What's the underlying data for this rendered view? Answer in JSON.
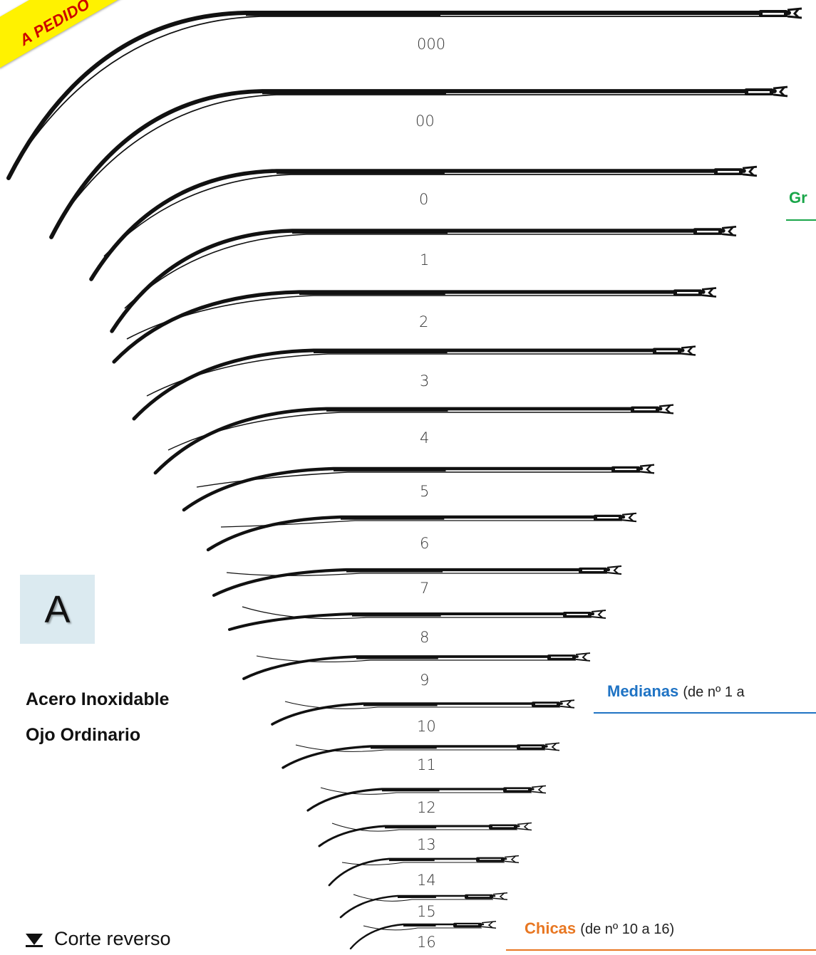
{
  "banner": {
    "text": "A PEDIDO"
  },
  "needle_sizes": [
    "000",
    "00",
    "0",
    "1",
    "2",
    "3",
    "4",
    "5",
    "6",
    "7",
    "8",
    "9",
    "10",
    "11",
    "12",
    "13",
    "14",
    "15",
    "16"
  ],
  "type_letter": "A",
  "description": {
    "line1": "Acero Inoxidable",
    "line2": "Ojo Ordinario"
  },
  "categories": {
    "large": {
      "label": "Gr",
      "color": "#1aa64a"
    },
    "medium": {
      "label": "Medianas",
      "range": "(de nº 1 a",
      "color": "#1f73c4"
    },
    "small": {
      "label": "Chicas",
      "range": "(de nº 10 a 16)",
      "color": "#e87722"
    }
  },
  "legend": {
    "icon": "reverse-cut-triangle-icon",
    "label": "Corte reverso"
  }
}
